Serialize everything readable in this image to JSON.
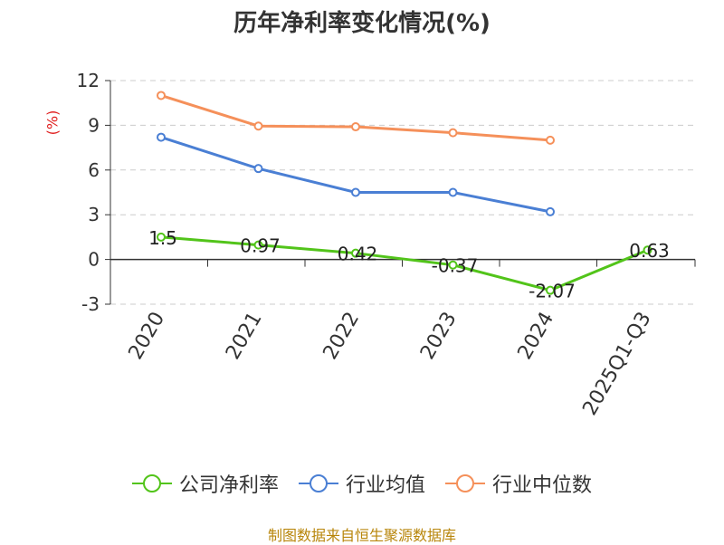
{
  "chart_data": {
    "type": "line",
    "title": "历年净利率变化情况(%)",
    "ylabel": "(%)",
    "categories": [
      "2020",
      "2021",
      "2022",
      "2023",
      "2024",
      "2025Q1-Q3"
    ],
    "ylim": [
      -3,
      12
    ],
    "yticks": [
      12,
      9,
      6,
      3,
      0,
      -3
    ],
    "grid": true,
    "legend_position": "bottom",
    "series": [
      {
        "name": "公司净利率",
        "color": "#52c41a",
        "values": [
          1.5,
          0.97,
          0.42,
          -0.37,
          -2.07,
          0.63
        ],
        "labels": [
          "1.5",
          "0.97",
          "0.42",
          "-0.37",
          "-2.07",
          "0.63"
        ]
      },
      {
        "name": "行业均值",
        "color": "#4a7fd4",
        "values": [
          8.2,
          6.1,
          4.5,
          4.5,
          3.2,
          null
        ]
      },
      {
        "name": "行业中位数",
        "color": "#f5905a",
        "values": [
          11.0,
          8.95,
          8.9,
          8.5,
          8.0,
          null
        ]
      }
    ]
  },
  "source": "制图数据来自恒生聚源数据库"
}
